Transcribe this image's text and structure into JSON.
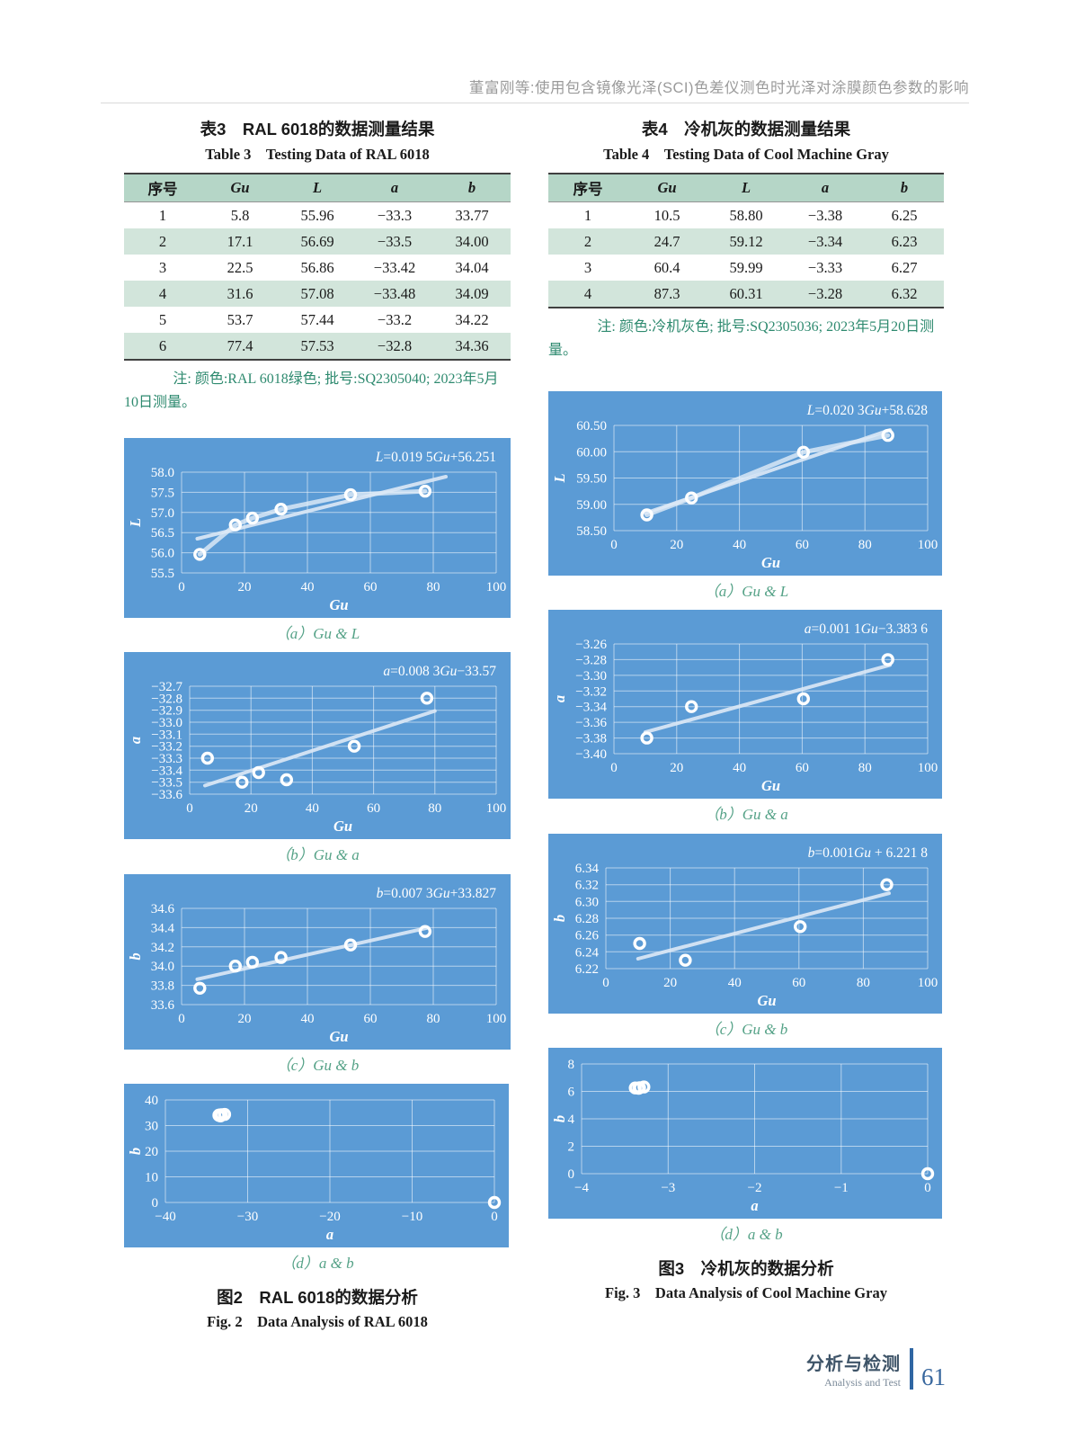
{
  "page": {
    "running_head": "董富刚等:使用包含镜像光泽(SCI)色差仪测色时光泽对涂膜颜色参数的影响",
    "footer": {
      "section_cn": "分析与检测",
      "section_en": "Analysis and Test",
      "page_number": "61"
    }
  },
  "colors": {
    "chart_bg": "#5b9bd5",
    "grid": "rgba(255,255,255,0.55)",
    "marker": "#ffffff",
    "trend": "#dde9f6",
    "series": "#e9f1fa",
    "table_header_bg": "#b5d6c7",
    "table_stripe_bg": "#d2e5db",
    "note_green": "#2e8a6f",
    "caption_green": "#55a287"
  },
  "tables": [
    {
      "title_cn": "表3　RAL 6018的数据测量结果",
      "title_en": "Table 3 Testing Data of RAL 6018",
      "headers": [
        "序号",
        "Gu",
        "L",
        "a",
        "b"
      ],
      "rows": [
        [
          "1",
          "5.8",
          "55.96",
          "−33.3",
          "33.77"
        ],
        [
          "2",
          "17.1",
          "56.69",
          "−33.5",
          "34.00"
        ],
        [
          "3",
          "22.5",
          "56.86",
          "−33.42",
          "34.04"
        ],
        [
          "4",
          "31.6",
          "57.08",
          "−33.48",
          "34.09"
        ],
        [
          "5",
          "53.7",
          "57.44",
          "−33.2",
          "34.22"
        ],
        [
          "6",
          "77.4",
          "57.53",
          "−32.8",
          "34.36"
        ]
      ],
      "note": "注: 颜色:RAL 6018绿色; 批号:SQ2305040; 2023年5月10日测量。"
    },
    {
      "title_cn": "表4　冷机灰的数据测量结果",
      "title_en": "Table 4 Testing Data of Cool Machine Gray",
      "headers": [
        "序号",
        "Gu",
        "L",
        "a",
        "b"
      ],
      "rows": [
        [
          "1",
          "10.5",
          "58.80",
          "−3.38",
          "6.25"
        ],
        [
          "2",
          "24.7",
          "59.12",
          "−3.34",
          "6.23"
        ],
        [
          "3",
          "60.4",
          "59.99",
          "−3.33",
          "6.27"
        ],
        [
          "4",
          "87.3",
          "60.31",
          "−3.28",
          "6.32"
        ]
      ],
      "note": "注: 颜色:冷机灰色; 批号:SQ2305036; 2023年5月20日测量。"
    }
  ],
  "figures": [
    {
      "caption_cn": "图2　RAL 6018的数据分析",
      "caption_en": "Fig. 2 Data Analysis of RAL 6018"
    },
    {
      "caption_cn": "图3　冷机灰的数据分析",
      "caption_en": "Fig. 3 Data Analysis of Cool Machine Gray"
    }
  ],
  "chart_data": [
    {
      "id": "fig2a",
      "type": "scatter",
      "sublabel": "（a）Gu & L",
      "equation": "L=0.019 5Gu+56.251",
      "xlabel": "Gu",
      "ylabel": "L",
      "x": [
        5.8,
        17.1,
        22.5,
        31.6,
        53.7,
        77.4
      ],
      "y": [
        55.96,
        56.69,
        56.86,
        57.08,
        57.44,
        57.53
      ],
      "xlim": [
        0,
        100
      ],
      "xticks": [
        0,
        20,
        40,
        60,
        80,
        100
      ],
      "ylim": [
        55.5,
        58.0
      ],
      "yticks": [
        55.5,
        56.0,
        56.5,
        57.0,
        57.5,
        58.0
      ],
      "ytick_decimals": 1,
      "grid": true,
      "trend": {
        "slope": 0.0195,
        "intercept": 56.251,
        "x_start": 5,
        "x_end": 84
      },
      "series_line": true,
      "size": [
        430,
        200
      ]
    },
    {
      "id": "fig2b",
      "type": "scatter",
      "sublabel": "（b）Gu & a",
      "equation": "a=0.008 3Gu−33.57",
      "xlabel": "Gu",
      "ylabel": "a",
      "x": [
        5.8,
        17.1,
        22.5,
        31.6,
        53.7,
        77.4
      ],
      "y": [
        -33.3,
        -33.5,
        -33.42,
        -33.48,
        -33.2,
        -32.8
      ],
      "xlim": [
        0,
        100
      ],
      "xticks": [
        0,
        20,
        40,
        60,
        80,
        100
      ],
      "ylim": [
        -33.6,
        -32.7
      ],
      "yticks": [
        -33.6,
        -33.5,
        -33.4,
        -33.3,
        -33.2,
        -33.1,
        -33.0,
        -32.9,
        -32.8,
        -32.7
      ],
      "ytick_decimals": 1,
      "grid": true,
      "trend": {
        "slope": 0.0083,
        "intercept": -33.57,
        "x_start": 5,
        "x_end": 80
      },
      "series_line": false,
      "size": [
        430,
        208
      ]
    },
    {
      "id": "fig2c",
      "type": "scatter",
      "sublabel": "（c）Gu & b",
      "equation": "b=0.007 3Gu+33.827",
      "xlabel": "Gu",
      "ylabel": "b",
      "x": [
        5.8,
        17.1,
        22.5,
        31.6,
        53.7,
        77.4
      ],
      "y": [
        33.77,
        34.0,
        34.04,
        34.09,
        34.22,
        34.36
      ],
      "xlim": [
        0,
        100
      ],
      "xticks": [
        0,
        20,
        40,
        60,
        80,
        100
      ],
      "ylim": [
        33.6,
        34.6
      ],
      "yticks": [
        33.6,
        33.8,
        34.0,
        34.2,
        34.4,
        34.6
      ],
      "ytick_decimals": 1,
      "grid": true,
      "trend": {
        "slope": 0.0073,
        "intercept": 33.827,
        "x_start": 5,
        "x_end": 78
      },
      "series_line": false,
      "size": [
        430,
        195
      ]
    },
    {
      "id": "fig2d",
      "type": "scatter",
      "sublabel": "（d）a & b",
      "equation": null,
      "xlabel": "a",
      "ylabel": "b",
      "x": [
        -33.3,
        -33.5,
        -33.42,
        -33.48,
        -33.2,
        -32.8,
        0
      ],
      "y": [
        33.77,
        34.0,
        34.04,
        34.09,
        34.22,
        34.36,
        0
      ],
      "xlim": [
        -40,
        0
      ],
      "xticks": [
        -40,
        -30,
        -20,
        -10,
        0
      ],
      "ylim": [
        0,
        40
      ],
      "yticks": [
        0,
        10,
        20,
        30,
        40
      ],
      "ytick_decimals": 0,
      "grid": true,
      "trend": null,
      "series_line": false,
      "size": [
        428,
        182
      ]
    },
    {
      "id": "fig3a",
      "type": "scatter",
      "sublabel": "（a）Gu & L",
      "equation": "L=0.020 3Gu+58.628",
      "xlabel": "Gu",
      "ylabel": "L",
      "x": [
        10.5,
        24.7,
        60.4,
        87.3
      ],
      "y": [
        58.8,
        59.12,
        59.99,
        60.31
      ],
      "xlim": [
        0,
        100
      ],
      "xticks": [
        0,
        20,
        40,
        60,
        80,
        100
      ],
      "ylim": [
        58.5,
        60.5
      ],
      "yticks": [
        58.5,
        59.0,
        59.5,
        60.0,
        60.5
      ],
      "ytick_decimals": 2,
      "grid": true,
      "trend": {
        "slope": 0.0203,
        "intercept": 58.628,
        "x_start": 10,
        "x_end": 88
      },
      "series_line": true,
      "size": [
        438,
        205
      ]
    },
    {
      "id": "fig3b",
      "type": "scatter",
      "sublabel": "（b）Gu & a",
      "equation": "a=0.001 1Gu−3.383 6",
      "xlabel": "Gu",
      "ylabel": "a",
      "x": [
        10.5,
        24.7,
        60.4,
        87.3
      ],
      "y": [
        -3.38,
        -3.34,
        -3.33,
        -3.28
      ],
      "xlim": [
        0,
        100
      ],
      "xticks": [
        0,
        20,
        40,
        60,
        80,
        100
      ],
      "ylim": [
        -3.4,
        -3.26
      ],
      "yticks": [
        -3.4,
        -3.38,
        -3.36,
        -3.34,
        -3.32,
        -3.3,
        -3.28,
        -3.26
      ],
      "ytick_decimals": 2,
      "grid": true,
      "trend": {
        "slope": 0.0011,
        "intercept": -3.3836,
        "x_start": 10,
        "x_end": 88
      },
      "series_line": false,
      "size": [
        438,
        210
      ]
    },
    {
      "id": "fig3c",
      "type": "scatter",
      "sublabel": "（c）Gu & b",
      "equation": "b=0.001Gu + 6.221 8",
      "xlabel": "Gu",
      "ylabel": "b",
      "x": [
        10.5,
        24.7,
        60.4,
        87.3
      ],
      "y": [
        6.25,
        6.23,
        6.27,
        6.32
      ],
      "xlim": [
        0,
        100
      ],
      "xticks": [
        0,
        20,
        40,
        60,
        80,
        100
      ],
      "ylim": [
        6.22,
        6.34
      ],
      "yticks": [
        6.22,
        6.24,
        6.26,
        6.28,
        6.3,
        6.32,
        6.34
      ],
      "ytick_decimals": 2,
      "grid": true,
      "trend": {
        "slope": 0.001,
        "intercept": 6.2218,
        "x_start": 10,
        "x_end": 88
      },
      "series_line": false,
      "size": [
        438,
        200
      ]
    },
    {
      "id": "fig3d",
      "type": "scatter",
      "sublabel": "（d）a & b",
      "equation": null,
      "xlabel": "a",
      "ylabel": "b",
      "x": [
        -3.38,
        -3.34,
        -3.33,
        -3.28,
        0
      ],
      "y": [
        6.25,
        6.23,
        6.27,
        6.32,
        0
      ],
      "xlim": [
        -4,
        0
      ],
      "xticks": [
        -4,
        -3,
        -2,
        -1,
        0
      ],
      "ylim": [
        0,
        8
      ],
      "yticks": [
        0,
        2,
        4,
        6,
        8
      ],
      "ytick_decimals": 0,
      "grid": true,
      "trend": null,
      "series_line": false,
      "size": [
        438,
        190
      ]
    }
  ]
}
